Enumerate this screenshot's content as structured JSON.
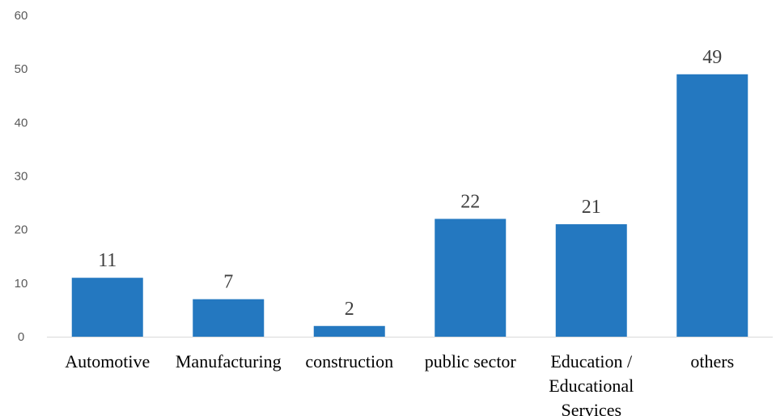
{
  "chart_data": {
    "type": "bar",
    "categories": [
      "Automotive",
      "Manufacturing",
      "construction",
      "public sector",
      "Education / Educational Services",
      "others"
    ],
    "category_lines": [
      [
        "Automotive"
      ],
      [
        "Manufacturing"
      ],
      [
        "construction"
      ],
      [
        "public sector"
      ],
      [
        "Education /",
        "Educational",
        "Services"
      ],
      [
        "others"
      ]
    ],
    "values": [
      11,
      7,
      2,
      22,
      21,
      49
    ],
    "title": "",
    "xlabel": "",
    "ylabel": "",
    "ylim": [
      0,
      60
    ],
    "yticks": [
      0,
      10,
      20,
      30,
      40,
      50,
      60
    ],
    "grid": false,
    "legend": "none",
    "data_labels": true,
    "bar_color": "#2478C0",
    "axis_color": "#D9D9D9"
  }
}
